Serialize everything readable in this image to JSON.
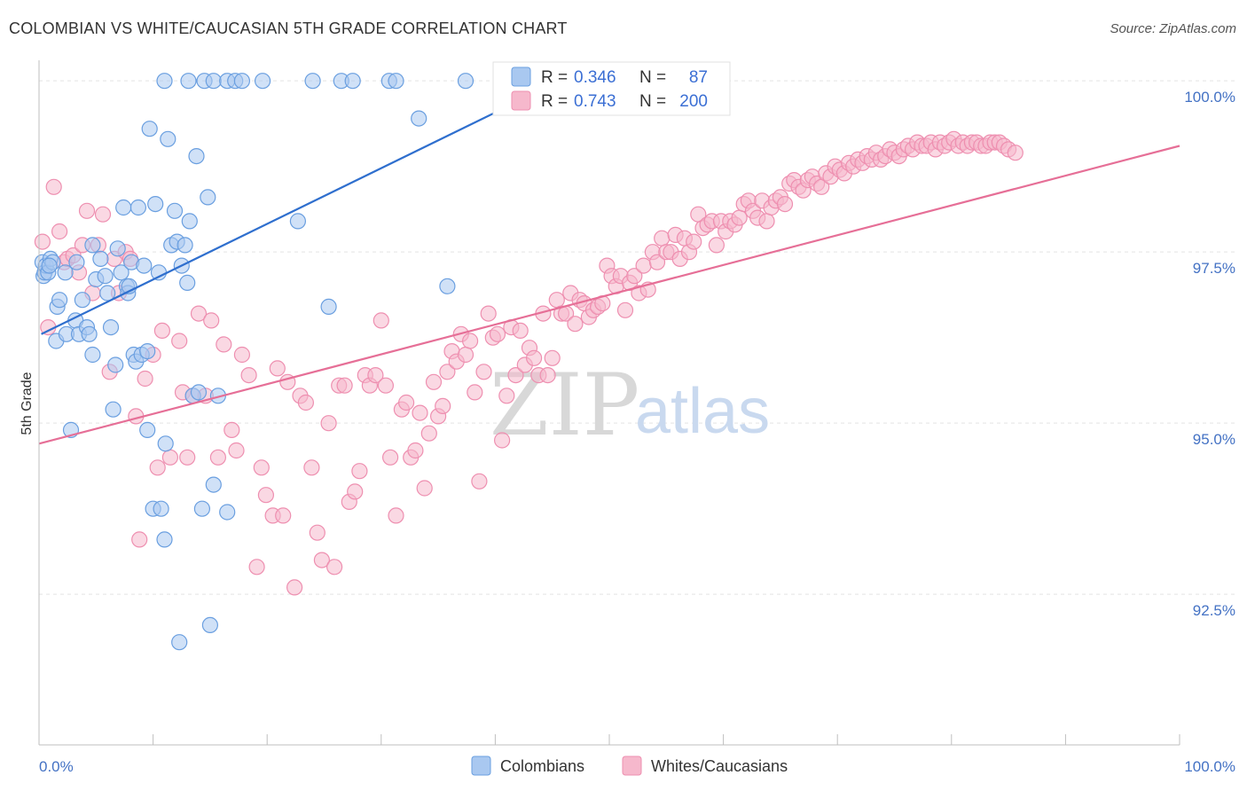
{
  "header": {
    "title": "COLOMBIAN VS WHITE/CAUCASIAN 5TH GRADE CORRELATION CHART",
    "source": "Source: ZipAtlas.com"
  },
  "colors": {
    "blue_fill": "#a9c8f0",
    "blue_stroke": "#6a9fe0",
    "blue_line": "#2f6fce",
    "pink_fill": "#f6b8cc",
    "pink_stroke": "#ee8fb0",
    "pink_line": "#e66f97",
    "tick_text": "#4472c4"
  },
  "legend": {
    "rows": [
      {
        "r_label": "R =",
        "r_value": "0.346",
        "n_label": "N =",
        "n_value": "87"
      },
      {
        "r_label": "R =",
        "r_value": "0.743",
        "n_label": "N =",
        "n_value": "200"
      }
    ]
  },
  "bottom_legend": {
    "items": [
      "Colombians",
      "Whites/Caucasians"
    ]
  },
  "watermark": {
    "zip": "ZIP",
    "atlas": "atlas"
  },
  "chart_data": {
    "type": "scatter",
    "ylabel": "5th Grade",
    "xlabel": "",
    "xlim": [
      0,
      100
    ],
    "ylim": [
      90.3,
      100.3
    ],
    "x_tick_labels": [
      "0.0%",
      "100.0%"
    ],
    "y_ticks": [
      92.5,
      95.0,
      97.5,
      100.0
    ],
    "y_tick_labels": [
      "92.5%",
      "95.0%",
      "97.5%",
      "100.0%"
    ],
    "grid": true,
    "series": [
      {
        "name": "Colombians",
        "trend": {
          "x0": 0.2,
          "y0": 96.3,
          "x1": 42.0,
          "y1": 99.7
        },
        "points": [
          [
            0.3,
            97.35
          ],
          [
            0.4,
            97.15
          ],
          [
            0.5,
            97.2
          ],
          [
            0.6,
            97.3
          ],
          [
            0.8,
            97.2
          ],
          [
            1.0,
            97.4
          ],
          [
            1.2,
            97.35
          ],
          [
            1.5,
            96.2
          ],
          [
            1.6,
            96.7
          ],
          [
            1.8,
            96.8
          ],
          [
            2.3,
            97.2
          ],
          [
            2.4,
            96.3
          ],
          [
            2.8,
            94.9
          ],
          [
            3.2,
            96.5
          ],
          [
            3.3,
            97.35
          ],
          [
            3.5,
            96.3
          ],
          [
            3.8,
            96.8
          ],
          [
            4.2,
            96.4
          ],
          [
            4.4,
            96.3
          ],
          [
            4.7,
            96.0
          ],
          [
            5.0,
            97.1
          ],
          [
            5.4,
            97.4
          ],
          [
            5.8,
            97.15
          ],
          [
            6.0,
            96.9
          ],
          [
            6.3,
            96.4
          ],
          [
            6.5,
            95.2
          ],
          [
            6.7,
            95.85
          ],
          [
            6.9,
            97.55
          ],
          [
            7.2,
            97.2
          ],
          [
            7.4,
            98.15
          ],
          [
            7.7,
            97.0
          ],
          [
            7.8,
            96.9
          ],
          [
            7.9,
            97.0
          ],
          [
            8.1,
            97.35
          ],
          [
            8.3,
            96.0
          ],
          [
            8.5,
            95.9
          ],
          [
            8.7,
            98.15
          ],
          [
            9.0,
            96.0
          ],
          [
            9.2,
            97.3
          ],
          [
            9.5,
            94.9
          ],
          [
            9.7,
            99.3
          ],
          [
            10.0,
            93.75
          ],
          [
            10.2,
            98.2
          ],
          [
            10.5,
            97.2
          ],
          [
            10.7,
            93.75
          ],
          [
            11.0,
            93.3
          ],
          [
            11.1,
            94.7
          ],
          [
            11.3,
            99.15
          ],
          [
            11.6,
            97.6
          ],
          [
            11.9,
            98.1
          ],
          [
            12.1,
            97.65
          ],
          [
            12.3,
            91.8
          ],
          [
            12.5,
            97.3
          ],
          [
            12.8,
            97.6
          ],
          [
            13.0,
            97.05
          ],
          [
            13.2,
            97.95
          ],
          [
            13.5,
            95.4
          ],
          [
            13.8,
            98.9
          ],
          [
            14.0,
            95.45
          ],
          [
            14.3,
            93.75
          ],
          [
            14.8,
            98.3
          ],
          [
            15.0,
            92.05
          ],
          [
            15.3,
            94.1
          ],
          [
            15.7,
            95.4
          ],
          [
            16.5,
            93.7
          ],
          [
            11.0,
            100.0
          ],
          [
            13.1,
            100.0
          ],
          [
            14.5,
            100.0
          ],
          [
            15.3,
            100.0
          ],
          [
            16.5,
            100.0
          ],
          [
            17.2,
            100.0
          ],
          [
            17.8,
            100.0
          ],
          [
            19.6,
            100.0
          ],
          [
            22.7,
            97.95
          ],
          [
            24.0,
            100.0
          ],
          [
            25.4,
            96.7
          ],
          [
            26.5,
            100.0
          ],
          [
            27.5,
            100.0
          ],
          [
            30.7,
            100.0
          ],
          [
            31.3,
            100.0
          ],
          [
            33.3,
            99.45
          ],
          [
            35.8,
            97.0
          ],
          [
            37.4,
            100.0
          ],
          [
            43.0,
            100.0
          ],
          [
            0.9,
            97.3
          ],
          [
            4.7,
            97.6
          ],
          [
            9.5,
            96.05
          ]
        ]
      },
      {
        "name": "Whites/Caucasians",
        "trend": {
          "x0": 0.0,
          "y0": 94.7,
          "x1": 100.0,
          "y1": 99.05
        },
        "points": [
          [
            0.3,
            97.65
          ],
          [
            0.8,
            96.4
          ],
          [
            1.3,
            98.45
          ],
          [
            1.8,
            97.8
          ],
          [
            2.2,
            97.35
          ],
          [
            2.5,
            97.4
          ],
          [
            3.0,
            97.45
          ],
          [
            3.5,
            97.2
          ],
          [
            3.8,
            97.6
          ],
          [
            4.2,
            98.1
          ],
          [
            4.7,
            96.9
          ],
          [
            5.2,
            97.6
          ],
          [
            5.6,
            98.05
          ],
          [
            6.2,
            95.75
          ],
          [
            6.6,
            97.4
          ],
          [
            7.0,
            96.9
          ],
          [
            7.6,
            97.5
          ],
          [
            8.0,
            97.4
          ],
          [
            8.5,
            95.1
          ],
          [
            8.8,
            93.3
          ],
          [
            9.3,
            95.65
          ],
          [
            10.0,
            96.0
          ],
          [
            10.4,
            94.35
          ],
          [
            10.8,
            96.35
          ],
          [
            11.5,
            94.5
          ],
          [
            12.3,
            96.2
          ],
          [
            12.6,
            95.45
          ],
          [
            13.0,
            94.5
          ],
          [
            13.5,
            95.4
          ],
          [
            14.0,
            96.6
          ],
          [
            14.6,
            95.4
          ],
          [
            15.1,
            96.5
          ],
          [
            15.7,
            94.5
          ],
          [
            16.2,
            96.15
          ],
          [
            16.9,
            94.9
          ],
          [
            17.3,
            94.6
          ],
          [
            17.8,
            96.0
          ],
          [
            18.4,
            95.7
          ],
          [
            19.1,
            92.9
          ],
          [
            19.5,
            94.35
          ],
          [
            19.9,
            93.95
          ],
          [
            20.5,
            93.65
          ],
          [
            20.9,
            95.8
          ],
          [
            21.4,
            93.65
          ],
          [
            21.8,
            95.6
          ],
          [
            22.4,
            92.6
          ],
          [
            22.9,
            95.4
          ],
          [
            23.4,
            95.3
          ],
          [
            23.9,
            94.35
          ],
          [
            24.4,
            93.4
          ],
          [
            24.8,
            93.0
          ],
          [
            25.4,
            95.0
          ],
          [
            25.9,
            92.9
          ],
          [
            26.3,
            95.55
          ],
          [
            26.8,
            95.55
          ],
          [
            27.2,
            93.85
          ],
          [
            27.7,
            94.0
          ],
          [
            28.1,
            94.3
          ],
          [
            28.6,
            95.7
          ],
          [
            29.0,
            95.55
          ],
          [
            29.5,
            95.7
          ],
          [
            30.0,
            96.5
          ],
          [
            30.4,
            95.55
          ],
          [
            30.8,
            94.5
          ],
          [
            31.3,
            93.65
          ],
          [
            31.8,
            95.2
          ],
          [
            32.2,
            95.3
          ],
          [
            32.6,
            94.5
          ],
          [
            33.0,
            94.6
          ],
          [
            33.4,
            95.15
          ],
          [
            33.8,
            94.05
          ],
          [
            34.2,
            94.85
          ],
          [
            34.6,
            95.6
          ],
          [
            35.0,
            95.1
          ],
          [
            35.4,
            95.25
          ],
          [
            35.8,
            95.75
          ],
          [
            36.2,
            96.05
          ],
          [
            36.6,
            95.9
          ],
          [
            37.0,
            96.3
          ],
          [
            37.4,
            96.0
          ],
          [
            37.8,
            96.2
          ],
          [
            38.2,
            95.45
          ],
          [
            38.6,
            94.15
          ],
          [
            39.0,
            95.75
          ],
          [
            39.4,
            96.6
          ],
          [
            39.8,
            96.25
          ],
          [
            40.2,
            96.3
          ],
          [
            40.6,
            94.75
          ],
          [
            41.0,
            95.4
          ],
          [
            41.4,
            96.4
          ],
          [
            41.8,
            95.7
          ],
          [
            42.2,
            96.35
          ],
          [
            42.6,
            95.85
          ],
          [
            43.0,
            96.1
          ],
          [
            43.4,
            95.95
          ],
          [
            43.8,
            95.7
          ],
          [
            44.2,
            96.6
          ],
          [
            44.6,
            95.7
          ],
          [
            45.0,
            95.95
          ],
          [
            45.4,
            96.8
          ],
          [
            45.8,
            96.6
          ],
          [
            46.2,
            96.6
          ],
          [
            46.6,
            96.9
          ],
          [
            47.0,
            96.45
          ],
          [
            47.4,
            96.8
          ],
          [
            47.8,
            96.75
          ],
          [
            48.2,
            96.55
          ],
          [
            48.6,
            96.65
          ],
          [
            49.0,
            96.7
          ],
          [
            49.4,
            96.75
          ],
          [
            49.8,
            97.3
          ],
          [
            50.2,
            97.15
          ],
          [
            50.6,
            97.0
          ],
          [
            51.0,
            97.15
          ],
          [
            51.4,
            96.65
          ],
          [
            51.8,
            97.05
          ],
          [
            52.2,
            97.15
          ],
          [
            52.6,
            96.9
          ],
          [
            53.0,
            97.3
          ],
          [
            53.4,
            96.95
          ],
          [
            53.8,
            97.5
          ],
          [
            54.2,
            97.35
          ],
          [
            54.6,
            97.7
          ],
          [
            55.0,
            97.5
          ],
          [
            55.4,
            97.5
          ],
          [
            55.8,
            97.75
          ],
          [
            56.2,
            97.4
          ],
          [
            56.6,
            97.7
          ],
          [
            57.0,
            97.5
          ],
          [
            57.4,
            97.65
          ],
          [
            57.8,
            98.05
          ],
          [
            58.2,
            97.85
          ],
          [
            58.6,
            97.9
          ],
          [
            59.0,
            97.95
          ],
          [
            59.4,
            97.6
          ],
          [
            59.8,
            97.95
          ],
          [
            60.2,
            97.8
          ],
          [
            60.6,
            97.95
          ],
          [
            61.0,
            97.9
          ],
          [
            61.4,
            98.0
          ],
          [
            61.8,
            98.2
          ],
          [
            62.2,
            98.25
          ],
          [
            62.6,
            98.1
          ],
          [
            63.0,
            98.0
          ],
          [
            63.4,
            98.25
          ],
          [
            63.8,
            97.95
          ],
          [
            64.2,
            98.15
          ],
          [
            64.6,
            98.25
          ],
          [
            65.0,
            98.3
          ],
          [
            65.4,
            98.2
          ],
          [
            65.8,
            98.5
          ],
          [
            66.2,
            98.55
          ],
          [
            66.6,
            98.45
          ],
          [
            67.0,
            98.4
          ],
          [
            67.4,
            98.55
          ],
          [
            67.8,
            98.6
          ],
          [
            68.2,
            98.5
          ],
          [
            68.6,
            98.45
          ],
          [
            69.0,
            98.65
          ],
          [
            69.4,
            98.6
          ],
          [
            69.8,
            98.75
          ],
          [
            70.2,
            98.7
          ],
          [
            70.6,
            98.65
          ],
          [
            71.0,
            98.8
          ],
          [
            71.4,
            98.75
          ],
          [
            71.8,
            98.85
          ],
          [
            72.2,
            98.8
          ],
          [
            72.6,
            98.9
          ],
          [
            73.0,
            98.85
          ],
          [
            73.4,
            98.95
          ],
          [
            73.8,
            98.85
          ],
          [
            74.2,
            98.9
          ],
          [
            74.6,
            99.0
          ],
          [
            75.0,
            98.95
          ],
          [
            75.4,
            98.9
          ],
          [
            75.8,
            99.0
          ],
          [
            76.2,
            99.05
          ],
          [
            76.6,
            99.0
          ],
          [
            77.0,
            99.1
          ],
          [
            77.4,
            99.05
          ],
          [
            77.8,
            99.05
          ],
          [
            78.2,
            99.1
          ],
          [
            78.6,
            99.0
          ],
          [
            79.0,
            99.1
          ],
          [
            79.4,
            99.05
          ],
          [
            79.8,
            99.1
          ],
          [
            80.2,
            99.15
          ],
          [
            80.6,
            99.05
          ],
          [
            81.0,
            99.1
          ],
          [
            81.4,
            99.05
          ],
          [
            81.8,
            99.1
          ],
          [
            82.2,
            99.1
          ],
          [
            82.6,
            99.05
          ],
          [
            83.0,
            99.05
          ],
          [
            83.4,
            99.1
          ],
          [
            83.8,
            99.1
          ],
          [
            84.2,
            99.1
          ],
          [
            84.6,
            99.05
          ],
          [
            85.0,
            99.0
          ],
          [
            85.6,
            98.95
          ]
        ]
      }
    ]
  }
}
